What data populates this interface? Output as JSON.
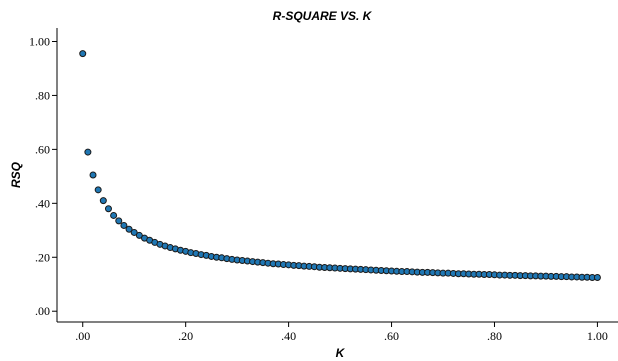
{
  "chart_data": {
    "type": "scatter",
    "title": "R-SQUARE VS. K",
    "xlabel": "K",
    "ylabel": "RSQ",
    "xlim": [
      -0.05,
      1.04
    ],
    "ylim": [
      -0.04,
      1.05
    ],
    "xticks": [
      0.0,
      0.2,
      0.4,
      0.6,
      0.8,
      1.0
    ],
    "xtick_labels": [
      ".00",
      ".20",
      ".40",
      ".60",
      ".80",
      "1.00"
    ],
    "yticks": [
      0.0,
      0.2,
      0.4,
      0.6,
      0.8,
      1.0
    ],
    "ytick_labels": [
      ".00",
      ".20",
      ".40",
      ".60",
      ".80",
      "1.00"
    ],
    "grid": false,
    "marker_color": "#1f77b4",
    "x": [
      0.0,
      0.01,
      0.02,
      0.03,
      0.04,
      0.05,
      0.06,
      0.07,
      0.08,
      0.09,
      0.1,
      0.11,
      0.12,
      0.13,
      0.14,
      0.15,
      0.16,
      0.17,
      0.18,
      0.19,
      0.2,
      0.21,
      0.22,
      0.23,
      0.24,
      0.25,
      0.26,
      0.27,
      0.28,
      0.29,
      0.3,
      0.31,
      0.32,
      0.33,
      0.34,
      0.35,
      0.36,
      0.37,
      0.38,
      0.39,
      0.4,
      0.41,
      0.42,
      0.43,
      0.44,
      0.45,
      0.46,
      0.47,
      0.48,
      0.49,
      0.5,
      0.51,
      0.52,
      0.53,
      0.54,
      0.55,
      0.56,
      0.57,
      0.58,
      0.59,
      0.6,
      0.61,
      0.62,
      0.63,
      0.64,
      0.65,
      0.66,
      0.67,
      0.68,
      0.69,
      0.7,
      0.71,
      0.72,
      0.73,
      0.74,
      0.75,
      0.76,
      0.77,
      0.78,
      0.79,
      0.8,
      0.81,
      0.82,
      0.83,
      0.84,
      0.85,
      0.86,
      0.87,
      0.88,
      0.89,
      0.9,
      0.91,
      0.92,
      0.93,
      0.94,
      0.95,
      0.96,
      0.97,
      0.98,
      0.99,
      1.0
    ],
    "y": [
      0.955,
      0.59,
      0.505,
      0.45,
      0.41,
      0.38,
      0.355,
      0.335,
      0.318,
      0.304,
      0.292,
      0.281,
      0.271,
      0.263,
      0.255,
      0.248,
      0.242,
      0.236,
      0.231,
      0.226,
      0.222,
      0.217,
      0.214,
      0.21,
      0.207,
      0.203,
      0.2,
      0.198,
      0.195,
      0.192,
      0.19,
      0.188,
      0.186,
      0.184,
      0.182,
      0.18,
      0.178,
      0.176,
      0.175,
      0.173,
      0.172,
      0.17,
      0.169,
      0.167,
      0.166,
      0.165,
      0.163,
      0.162,
      0.161,
      0.16,
      0.159,
      0.158,
      0.157,
      0.156,
      0.155,
      0.154,
      0.153,
      0.152,
      0.151,
      0.15,
      0.149,
      0.148,
      0.147,
      0.147,
      0.146,
      0.145,
      0.144,
      0.144,
      0.143,
      0.142,
      0.141,
      0.141,
      0.14,
      0.139,
      0.139,
      0.138,
      0.137,
      0.137,
      0.136,
      0.136,
      0.135,
      0.134,
      0.134,
      0.133,
      0.133,
      0.132,
      0.132,
      0.131,
      0.131,
      0.13,
      0.13,
      0.129,
      0.129,
      0.128,
      0.128,
      0.127,
      0.127,
      0.126,
      0.126,
      0.125,
      0.125
    ]
  }
}
